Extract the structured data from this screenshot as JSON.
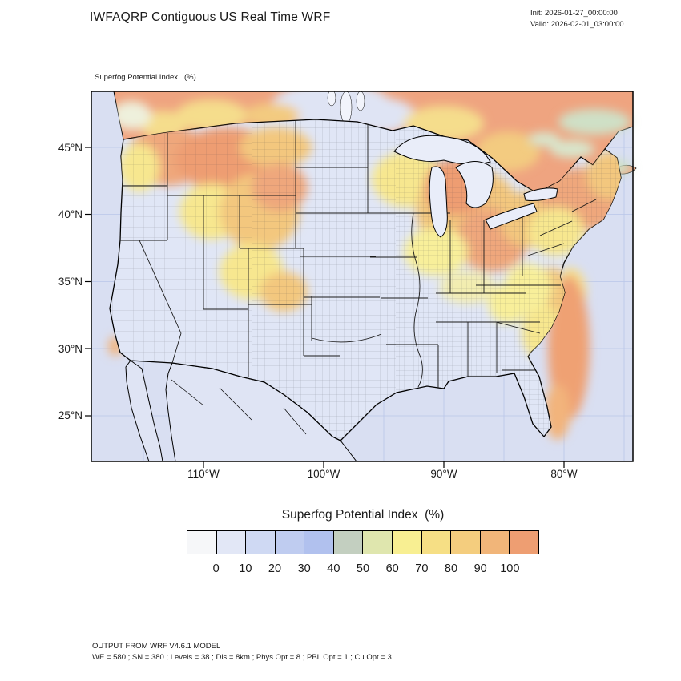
{
  "header": {
    "title": "IWFAQRP Contiguous US Real Time WRF",
    "init": "Init: 2026-01-27_00:00:00",
    "valid": "Valid: 2026-02-01_03:00:00"
  },
  "map": {
    "field_label": "Superfog Potential Index   (%)",
    "lat_labels": [
      "45°N",
      "40°N",
      "35°N",
      "30°N",
      "25°N"
    ],
    "lon_labels": [
      "110°W",
      "100°W",
      "90°W",
      "80°W"
    ]
  },
  "colorbar": {
    "title": "Superfog Potential Index  (%)",
    "tick_labels": [
      "0",
      "10",
      "20",
      "30",
      "40",
      "50",
      "60",
      "70",
      "80",
      "90",
      "100"
    ],
    "colors": [
      "#f6f7f9",
      "#e2e7f6",
      "#cfd9f3",
      "#bfccf0",
      "#b1c1ee",
      "#c3cfc0",
      "#dfe6ae",
      "#f8ef92",
      "#f6df85",
      "#f4cd7e",
      "#f1b579",
      "#ee9e72"
    ]
  },
  "footer": {
    "line1": "OUTPUT FROM WRF V4.6.1 MODEL",
    "line2": "WE = 580 ; SN = 380 ; Levels = 38 ; Dis = 8km ; Phys Opt = 8 ; PBL Opt = 1 ; Cu Opt = 3"
  },
  "chart_data": {
    "type": "heatmap",
    "title": "Superfog Potential Index (%)",
    "units": "%",
    "region": "Contiguous US",
    "levels": [
      0,
      10,
      20,
      30,
      40,
      50,
      60,
      70,
      80,
      90,
      100
    ],
    "palette": [
      "#f6f7f9",
      "#e2e7f6",
      "#cfd9f3",
      "#bfccf0",
      "#b1c1ee",
      "#c3cfc0",
      "#dfe6ae",
      "#f8ef92",
      "#f6df85",
      "#f4cd7e",
      "#f1b579",
      "#ee9e72"
    ],
    "x_axis_ticks": [
      "110°W",
      "100°W",
      "90°W",
      "80°W"
    ],
    "y_axis_ticks": [
      "45°N",
      "40°N",
      "35°N",
      "30°N",
      "25°N"
    ],
    "high_value_areas": [
      "Pacific Northwest and Northern Rockies",
      "Upper Midwest / Great Lakes (WI, MI, IN, OH)",
      "Northeast (PA, NY, New England)",
      "Southeast Atlantic coast (Carolinas, Georgia)",
      "Atlantic waters off the Southeast coast",
      "Southern Canada"
    ],
    "low_value_areas": [
      "Great Plains",
      "California, Nevada and Southwest",
      "Texas and Gulf Coast",
      "Florida peninsula"
    ]
  }
}
